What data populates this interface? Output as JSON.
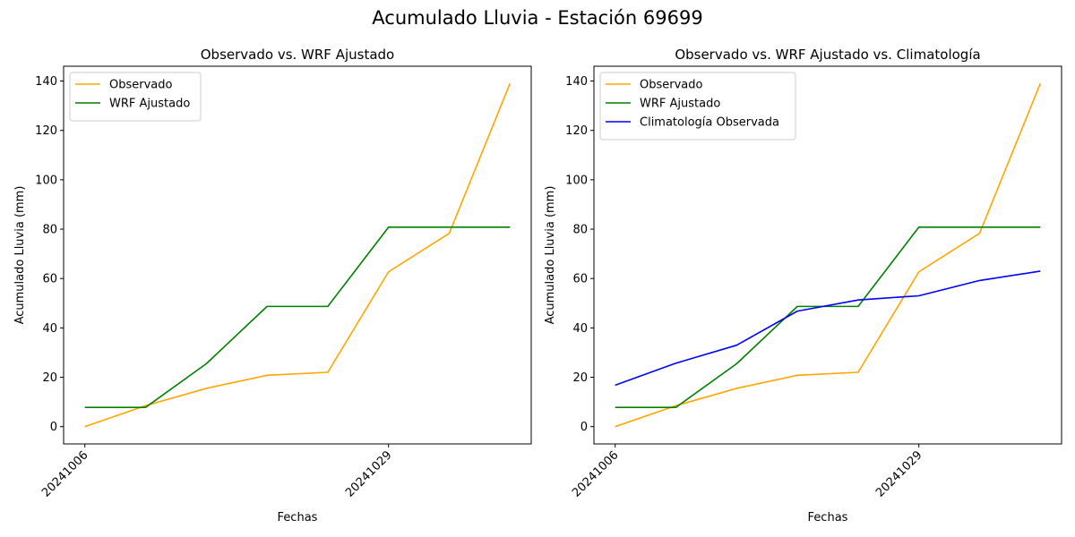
{
  "figure": {
    "suptitle": "Acumulado Lluvia - Estación 69699"
  },
  "colors": {
    "observado": "#ffa500",
    "wrf": "#008000",
    "clim": "#0000ff"
  },
  "chart_data": [
    {
      "type": "line",
      "title": "Observado vs. WRF Ajustado",
      "xlabel": "Fechas",
      "ylabel": "Acumulado Lluvia (mm)",
      "x": [
        0,
        1,
        2,
        3,
        4,
        5,
        6,
        7
      ],
      "xticks": [
        {
          "pos": 0,
          "label": "20241006"
        },
        {
          "pos": 5,
          "label": "20241029"
        }
      ],
      "yticks": [
        0,
        20,
        40,
        60,
        80,
        100,
        120,
        140
      ],
      "ylim": [
        -7,
        146
      ],
      "xlim": [
        -0.35,
        7.35
      ],
      "legend": "top-left",
      "series": [
        {
          "name": "Observado",
          "color_key": "observado",
          "values": [
            0,
            8.5,
            15.5,
            20.8,
            22.0,
            62.7,
            78.3,
            139.0
          ]
        },
        {
          "name": "WRF Ajustado",
          "color_key": "wrf",
          "values": [
            7.8,
            7.8,
            25.5,
            48.7,
            48.7,
            80.8,
            80.8,
            80.8
          ]
        }
      ]
    },
    {
      "type": "line",
      "title": "Observado vs. WRF Ajustado vs. Climatología",
      "xlabel": "Fechas",
      "ylabel": "Acumulado Lluvia (mm)",
      "x": [
        0,
        1,
        2,
        3,
        4,
        5,
        6,
        7
      ],
      "xticks": [
        {
          "pos": 0,
          "label": "20241006"
        },
        {
          "pos": 5,
          "label": "20241029"
        }
      ],
      "yticks": [
        0,
        20,
        40,
        60,
        80,
        100,
        120,
        140
      ],
      "ylim": [
        -7,
        146
      ],
      "xlim": [
        -0.35,
        7.35
      ],
      "legend": "top-left",
      "series": [
        {
          "name": "Observado",
          "color_key": "observado",
          "values": [
            0,
            8.5,
            15.5,
            20.8,
            22.0,
            62.7,
            78.3,
            139.0
          ]
        },
        {
          "name": "WRF Ajustado",
          "color_key": "wrf",
          "values": [
            7.8,
            7.8,
            25.5,
            48.7,
            48.7,
            80.8,
            80.8,
            80.8
          ]
        },
        {
          "name": "Climatología Observada",
          "color_key": "clim",
          "values": [
            16.8,
            25.7,
            33.0,
            46.8,
            51.3,
            53.0,
            59.2,
            63.0
          ]
        }
      ]
    }
  ]
}
